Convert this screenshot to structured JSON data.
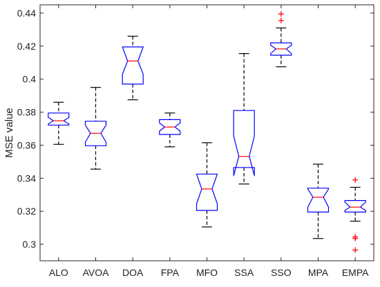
{
  "chart_data": {
    "type": "boxplot",
    "title": "",
    "xlabel": "",
    "ylabel": "MSE value",
    "ylim": [
      0.29,
      0.445
    ],
    "yticks": [
      0.3,
      0.32,
      0.34,
      0.36,
      0.38,
      0.4,
      0.42,
      0.44
    ],
    "ytick_labels": [
      "0.3",
      "0.32",
      "0.34",
      "0.36",
      "0.38",
      "0.4",
      "0.42",
      "0.44"
    ],
    "grid": false,
    "notched": true,
    "colors": {
      "box": "#0000ff",
      "median": "#ff0000",
      "whisker": "#000000",
      "outlier": "#ff0000",
      "axis": "#262626"
    },
    "categories": [
      "ALO",
      "AVOA",
      "DOA",
      "FPA",
      "MFO",
      "SSA",
      "SSO",
      "MPA",
      "EMPA"
    ],
    "boxes": [
      {
        "name": "ALO",
        "whisker_low": 0.3605,
        "q1": 0.3722,
        "median": 0.3748,
        "q3": 0.3795,
        "whisker_high": 0.386,
        "notch_low": 0.3728,
        "notch_high": 0.3768,
        "outliers": []
      },
      {
        "name": "AVOA",
        "whisker_low": 0.3455,
        "q1": 0.3597,
        "median": 0.3672,
        "q3": 0.3745,
        "whisker_high": 0.395,
        "notch_low": 0.3618,
        "notch_high": 0.3722,
        "outliers": []
      },
      {
        "name": "DOA",
        "whisker_low": 0.3875,
        "q1": 0.397,
        "median": 0.411,
        "q3": 0.4195,
        "whisker_high": 0.426,
        "notch_low": 0.403,
        "notch_high": 0.4195,
        "outliers": []
      },
      {
        "name": "FPA",
        "whisker_low": 0.359,
        "q1": 0.3665,
        "median": 0.371,
        "q3": 0.3755,
        "whisker_high": 0.3795,
        "notch_low": 0.3685,
        "notch_high": 0.3735,
        "outliers": []
      },
      {
        "name": "MFO",
        "whisker_low": 0.3105,
        "q1": 0.3205,
        "median": 0.3335,
        "q3": 0.3425,
        "whisker_high": 0.3615,
        "notch_low": 0.3245,
        "notch_high": 0.3425,
        "outliers": []
      },
      {
        "name": "SSA",
        "whisker_low": 0.3365,
        "q1": 0.3465,
        "median": 0.3532,
        "q3": 0.381,
        "whisker_high": 0.4155,
        "notch_low": 0.3415,
        "notch_high": 0.3655,
        "outliers": []
      },
      {
        "name": "SSO",
        "whisker_low": 0.4075,
        "q1": 0.4145,
        "median": 0.4183,
        "q3": 0.422,
        "whisker_high": 0.431,
        "notch_low": 0.4155,
        "notch_high": 0.4205,
        "outliers": [
          0.4355,
          0.4395
        ]
      },
      {
        "name": "MPA",
        "whisker_low": 0.3035,
        "q1": 0.3195,
        "median": 0.3285,
        "q3": 0.334,
        "whisker_high": 0.3485,
        "notch_low": 0.3225,
        "notch_high": 0.3335,
        "outliers": []
      },
      {
        "name": "EMPA",
        "whisker_low": 0.314,
        "q1": 0.3195,
        "median": 0.3225,
        "q3": 0.3265,
        "whisker_high": 0.3345,
        "notch_low": 0.3205,
        "notch_high": 0.3255,
        "outliers": [
          0.2965,
          0.3035,
          0.3045,
          0.339
        ]
      }
    ]
  }
}
